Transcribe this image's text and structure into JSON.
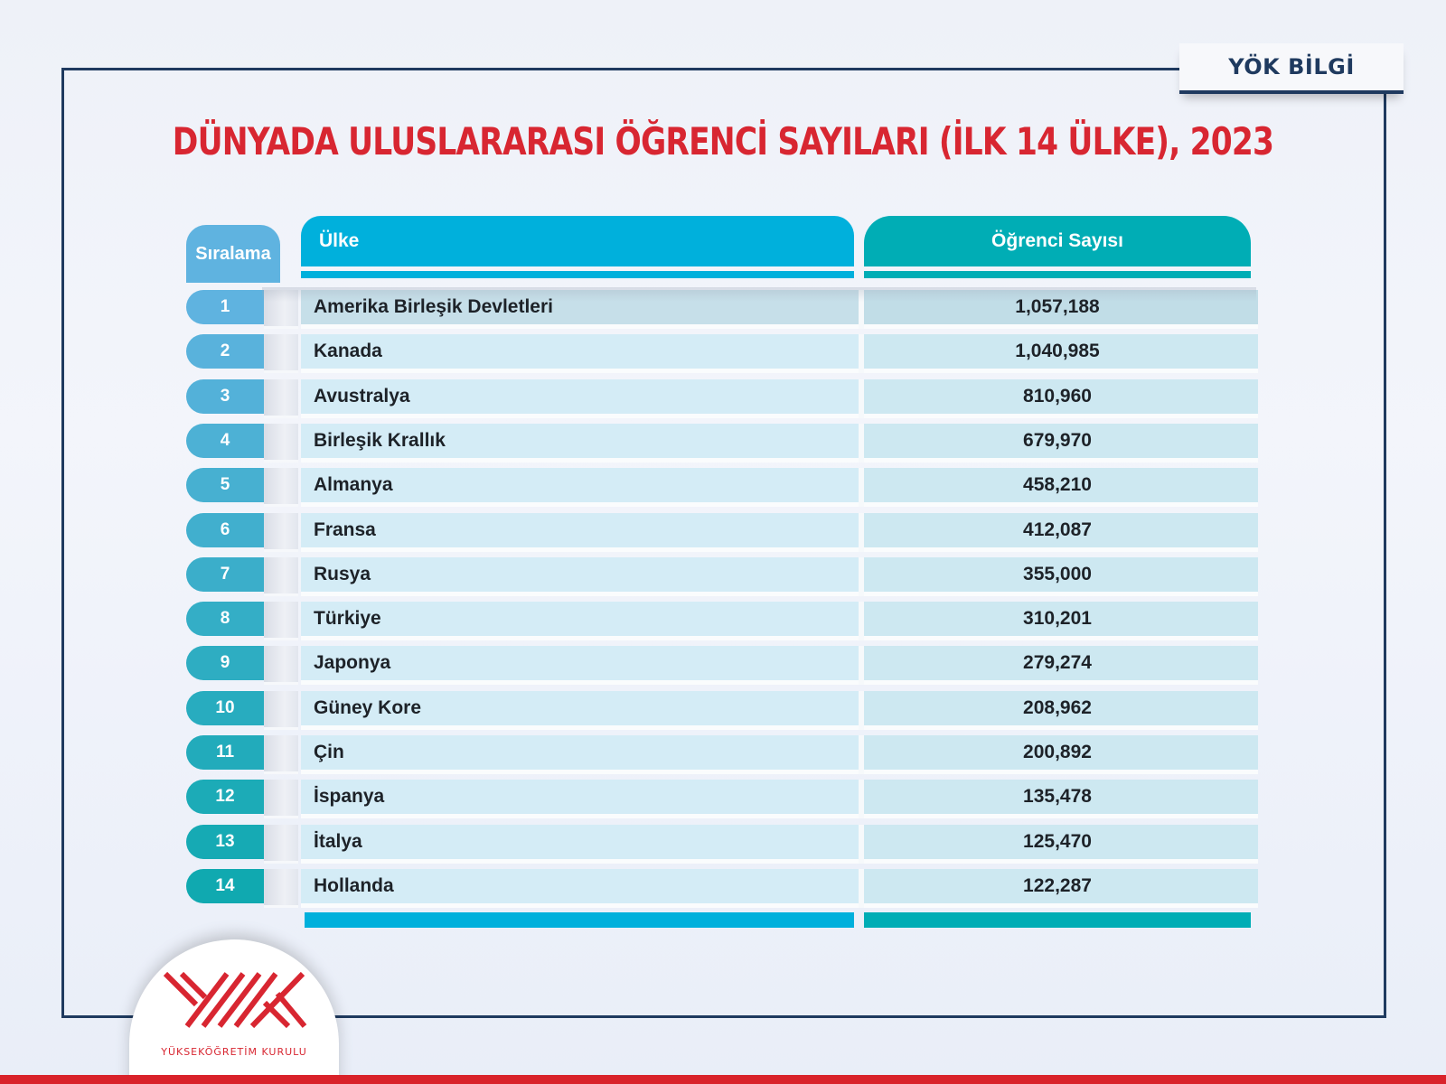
{
  "badge": {
    "label": "YÖK BİLGİ"
  },
  "title": "DÜNYADA ULUSLARARASI ÖĞRENCİ SAYILARI (İLK 14 ÜLKE), 2023",
  "table": {
    "headers": {
      "rank": "Sıralama",
      "country": "Ülke",
      "count": "Öğrenci Sayısı"
    },
    "rows": [
      {
        "rank": "1",
        "country": "Amerika Birleşik Devletleri",
        "count": "1,057,188"
      },
      {
        "rank": "2",
        "country": "Kanada",
        "count": "1,040,985"
      },
      {
        "rank": "3",
        "country": "Avustralya",
        "count": "810,960"
      },
      {
        "rank": "4",
        "country": "Birleşik Krallık",
        "count": "679,970"
      },
      {
        "rank": "5",
        "country": "Almanya",
        "count": "458,210"
      },
      {
        "rank": "6",
        "country": "Fransa",
        "count": "412,087"
      },
      {
        "rank": "7",
        "country": "Rusya",
        "count": "355,000"
      },
      {
        "rank": "8",
        "country": "Türkiye",
        "count": "310,201"
      },
      {
        "rank": "9",
        "country": "Japonya",
        "count": "279,274"
      },
      {
        "rank": "10",
        "country": "Güney Kore",
        "count": "208,962"
      },
      {
        "rank": "11",
        "country": "Çin",
        "count": "200,892"
      },
      {
        "rank": "12",
        "country": "İspanya",
        "count": "135,478"
      },
      {
        "rank": "13",
        "country": "İtalya",
        "count": "125,470"
      },
      {
        "rank": "14",
        "country": "Hollanda",
        "count": "122,287"
      }
    ]
  },
  "logo": {
    "text": "YÜKSEKÖĞRETİM KURULU"
  },
  "colors": {
    "title_red": "#d82631",
    "navy": "#1f3a5f",
    "country_header": "#00b0dc",
    "count_header": "#00adb5",
    "rank_gradient_start": "#5fb3e0",
    "rank_gradient_end": "#10a9b0"
  },
  "chart_data": {
    "type": "table",
    "title": "DÜNYADA ULUSLARARASI ÖĞRENCİ SAYILARI (İLK 14 ÜLKE), 2023",
    "columns": [
      "Sıralama",
      "Ülke",
      "Öğrenci Sayısı"
    ],
    "categories": [
      "Amerika Birleşik Devletleri",
      "Kanada",
      "Avustralya",
      "Birleşik Krallık",
      "Almanya",
      "Fransa",
      "Rusya",
      "Türkiye",
      "Japonya",
      "Güney Kore",
      "Çin",
      "İspanya",
      "İtalya",
      "Hollanda"
    ],
    "values": [
      1057188,
      1040985,
      810960,
      679970,
      458210,
      412087,
      355000,
      310201,
      279274,
      208962,
      200892,
      135478,
      125470,
      122287
    ],
    "ranks": [
      1,
      2,
      3,
      4,
      5,
      6,
      7,
      8,
      9,
      10,
      11,
      12,
      13,
      14
    ]
  }
}
